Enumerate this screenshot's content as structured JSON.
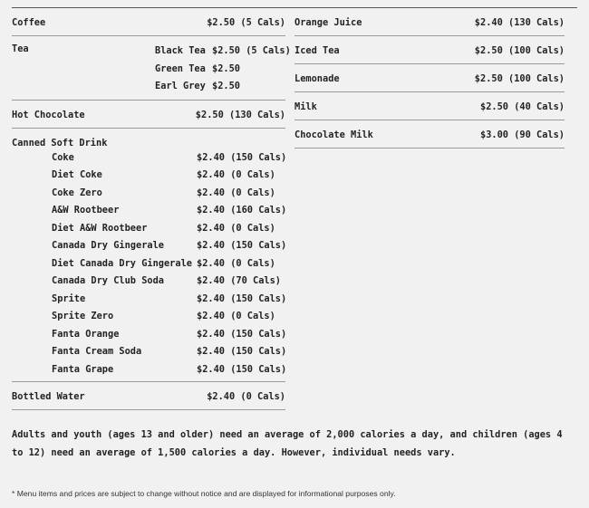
{
  "left": [
    {
      "name": "Coffee",
      "price": "$2.50 (5 Cals)"
    },
    {
      "name": "Tea",
      "subs": [
        {
          "name": "Black Tea",
          "price": "$2.50 (5 Cals)"
        },
        {
          "name": "Green Tea",
          "price": "$2.50"
        },
        {
          "name": "Earl Grey",
          "price": "$2.50"
        }
      ]
    },
    {
      "name": "Hot Chocolate",
      "price": "$2.50 (130 Cals)"
    },
    {
      "name": "Canned Soft Drink",
      "subs": [
        {
          "name": "Coke",
          "price": "$2.40 (150 Cals)"
        },
        {
          "name": "Diet Coke",
          "price": "$2.40 (0 Cals)"
        },
        {
          "name": "Coke Zero",
          "price": "$2.40 (0 Cals)"
        },
        {
          "name": "A&W Rootbeer",
          "price": "$2.40 (160 Cals)"
        },
        {
          "name": "Diet A&W Rootbeer",
          "price": "$2.40 (0 Cals)"
        },
        {
          "name": "Canada Dry Gingerale",
          "price": "$2.40 (150 Cals)"
        },
        {
          "name": "Diet Canada Dry Gingerale",
          "price": "$2.40 (0 Cals)"
        },
        {
          "name": "Canada Dry Club Soda",
          "price": "$2.40 (70 Cals)"
        },
        {
          "name": "Sprite",
          "price": "$2.40 (150 Cals)"
        },
        {
          "name": "Sprite Zero",
          "price": "$2.40 (0 Cals)"
        },
        {
          "name": "Fanta Orange",
          "price": "$2.40 (150 Cals)"
        },
        {
          "name": "Fanta Cream Soda",
          "price": "$2.40 (150 Cals)"
        },
        {
          "name": "Fanta Grape",
          "price": "$2.40 (150 Cals)"
        }
      ]
    },
    {
      "name": "Bottled Water",
      "price": "$2.40 (0 Cals)"
    }
  ],
  "right": [
    {
      "name": "Orange Juice",
      "price": "$2.40 (130 Cals)"
    },
    {
      "name": "Iced Tea",
      "price": "$2.50 (100 Cals)"
    },
    {
      "name": "Lemonade",
      "price": "$2.50 (100 Cals)"
    },
    {
      "name": "Milk",
      "price": "$2.50 (40 Cals)"
    },
    {
      "name": "Chocolate Milk",
      "price": "$3.00 (90 Cals)"
    }
  ],
  "note": "Adults and youth (ages 13 and older) need an average of 2,000 calories a day, and children (ages 4 to 12) need an average of 1,500 calories a day. However, individual needs vary.",
  "disclaimer": "* Menu items and prices are subject to change without notice and are displayed for informational purposes only."
}
